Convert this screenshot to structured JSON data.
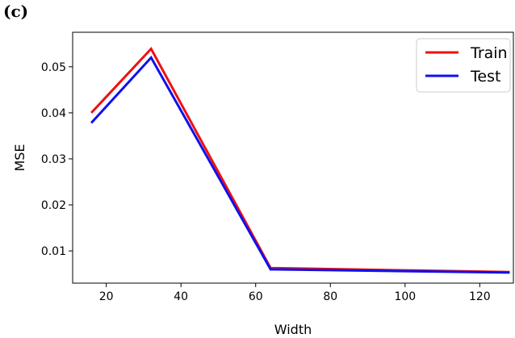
{
  "panel_label": "(c)",
  "chart_data": {
    "type": "line",
    "xlabel": "Width",
    "ylabel": "MSE",
    "xlim": [
      11,
      129
    ],
    "ylim": [
      0.003,
      0.0575
    ],
    "xticks": [
      20,
      40,
      60,
      80,
      100,
      120
    ],
    "yticks": [
      0.01,
      0.02,
      0.03,
      0.04,
      0.05
    ],
    "xtick_labels": [
      "20",
      "40",
      "60",
      "80",
      "100",
      "120"
    ],
    "ytick_labels": [
      "0.01",
      "0.02",
      "0.03",
      "0.04",
      "0.05"
    ],
    "grid": false,
    "legend_position": "top-right",
    "x": [
      16,
      32,
      64,
      128
    ],
    "series": [
      {
        "name": "Train",
        "color": "#ee1111",
        "values": [
          0.04,
          0.0539,
          0.0063,
          0.0054
        ]
      },
      {
        "name": "Test",
        "color": "#1010ee",
        "values": [
          0.0378,
          0.052,
          0.006,
          0.0053
        ]
      }
    ]
  }
}
